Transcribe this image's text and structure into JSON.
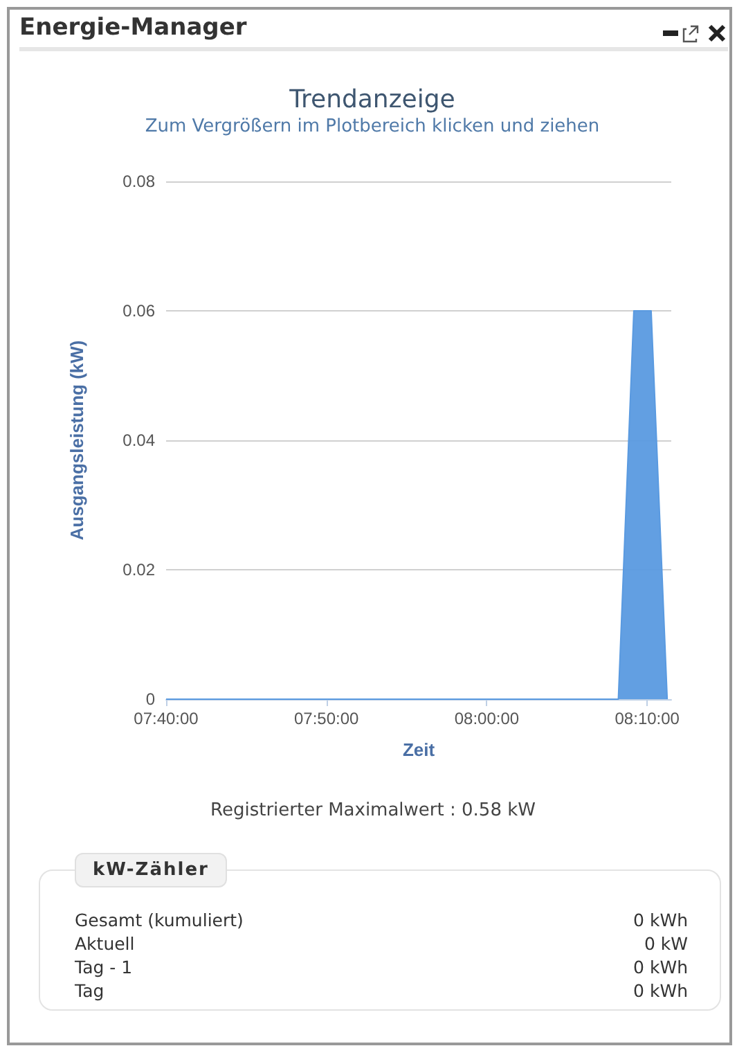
{
  "chart_data": {
    "type": "area",
    "title": "Trendanzeige",
    "subtitle": "Zum Vergrößern im Plotbereich klicken und ziehen",
    "xlabel": "Zeit",
    "ylabel": "Ausgangsleistung (kW)",
    "x": [
      7.6667,
      8.1367,
      8.1528,
      8.1708,
      8.1875
    ],
    "values": [
      0,
      0,
      0.06,
      0.06,
      0
    ],
    "color": "#5a9ae0",
    "xlim": [
      7.6667,
      8.1917
    ],
    "xticks": [
      {
        "value": 7.6667,
        "label": "07:40:00"
      },
      {
        "value": 7.8333,
        "label": "07:50:00"
      },
      {
        "value": 8,
        "label": "08:00:00"
      },
      {
        "value": 8.1667,
        "label": "08:10:00"
      }
    ],
    "ylim": [
      0,
      0.08
    ],
    "yticks": [
      0,
      0.02,
      0.04,
      0.06,
      0.08
    ],
    "grid": "y",
    "annotations": [
      "Energie-Manager",
      "Registrierter Maximalwert : 0.58 kW",
      "kW-Zähler",
      "Gesamt (kumuliert)",
      "0 kWh",
      "Aktuell",
      "0 kW",
      "Tag - 1",
      "0 kWh",
      "Tag",
      "0 kWh"
    ]
  }
}
